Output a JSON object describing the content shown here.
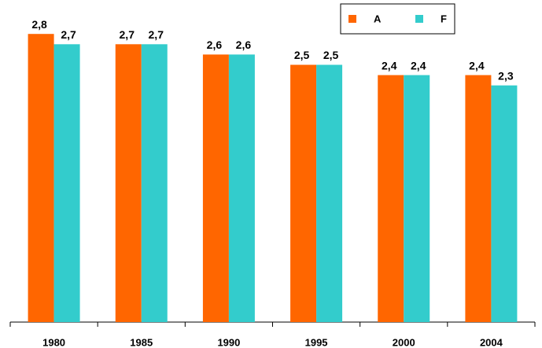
{
  "chart_data": {
    "type": "bar",
    "categories": [
      "1980",
      "1985",
      "1990",
      "1995",
      "2000",
      "2004"
    ],
    "series": [
      {
        "name": "A",
        "color": "#ff6600",
        "values": [
          2.8,
          2.7,
          2.6,
          2.5,
          2.4,
          2.4
        ],
        "value_labels": [
          "2,8",
          "2,7",
          "2,6",
          "2,5",
          "2,4",
          "2,4"
        ]
      },
      {
        "name": "F",
        "color": "#33cccc",
        "values": [
          2.7,
          2.7,
          2.6,
          2.5,
          2.4,
          2.3
        ],
        "value_labels": [
          "2,7",
          "2,7",
          "2,6",
          "2,5",
          "2,4",
          "2,3"
        ]
      }
    ],
    "ylim": [
      0,
      3
    ],
    "legend": "top-right"
  }
}
